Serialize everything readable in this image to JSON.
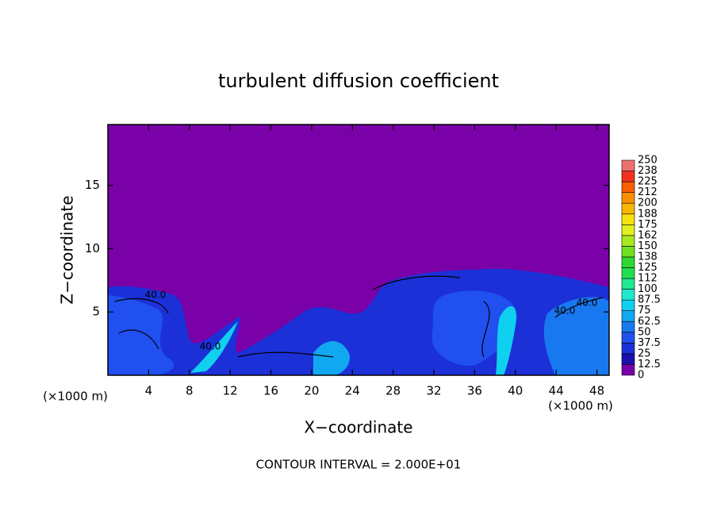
{
  "chart_data": {
    "type": "contour",
    "title": "turbulent diffusion coefficient",
    "x_label": "X−coordinate",
    "y_label": "Z−coordinate",
    "x_unit_left": "(×1000 m)",
    "x_unit_right": "(×1000 m)",
    "footnote": "CONTOUR INTERVAL = 2.000E+01",
    "contour_labels": [
      "40.0",
      "40.0",
      "40.0",
      "40.0"
    ],
    "xlim": [
      0,
      49.2
    ],
    "ylim": [
      0,
      19.8
    ],
    "xticks": [
      4,
      8,
      12,
      16,
      20,
      24,
      28,
      32,
      36,
      40,
      44,
      48
    ],
    "yticks": [
      5,
      10,
      15
    ],
    "colorbar": {
      "levels": [
        0,
        12.5,
        25,
        37.5,
        50,
        62.5,
        75,
        87.5,
        100,
        {
          "value": 112.5,
          "label": "112"
        },
        125,
        {
          "value": 137.5,
          "label": "138"
        },
        150,
        {
          "value": 162.5,
          "label": "162"
        },
        175,
        {
          "value": 187.5,
          "label": "188"
        },
        200,
        {
          "value": 212.5,
          "label": "212"
        },
        225,
        {
          "value": 237.5,
          "label": "238"
        },
        250
      ],
      "colors": [
        "#7a00a8",
        "#1a10b0",
        "#1c30d8",
        "#2050f0",
        "#1878f0",
        "#10a8f0",
        "#10d0f0",
        "#20e8d0",
        "#20e890",
        "#20e050",
        "#30d830",
        "#70e020",
        "#a8e820",
        "#e0f020",
        "#f8e010",
        "#f8b800",
        "#f89000",
        "#f86000",
        "#f03020",
        "#f07070"
      ]
    }
  }
}
